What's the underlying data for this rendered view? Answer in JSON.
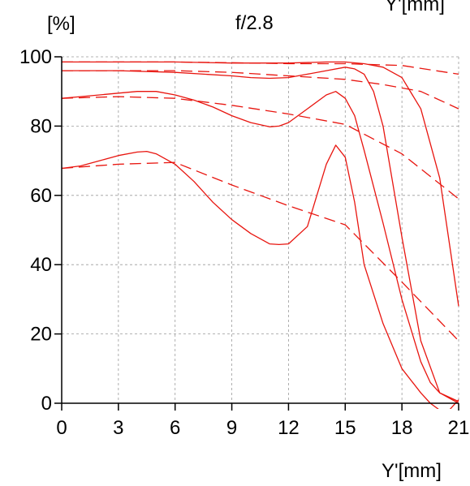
{
  "chart_data": {
    "type": "line",
    "title": "f/2.8",
    "ylabel": "[%]",
    "xlabel": "Y'[mm]",
    "corner_label": "Y'[mm]",
    "xlim": [
      0,
      21
    ],
    "ylim": [
      0,
      100
    ],
    "xticks": [
      0,
      3,
      6,
      9,
      12,
      15,
      18,
      21
    ],
    "yticks": [
      0,
      20,
      40,
      60,
      80,
      100
    ],
    "grid": true,
    "legend": "none",
    "colors": {
      "series": "#e8150f",
      "grid": "#9a9a9a",
      "axis": "#000000"
    },
    "series": [
      {
        "style": "solid",
        "x": [
          0,
          3,
          6,
          9,
          12,
          14,
          15,
          16,
          17,
          18,
          19,
          20,
          21
        ],
        "y": [
          98.5,
          98.5,
          98.5,
          98.2,
          98.2,
          98.5,
          98.5,
          98,
          97,
          94,
          85,
          65,
          28
        ]
      },
      {
        "style": "dashed",
        "x": [
          0,
          3,
          6,
          9,
          12,
          15,
          18,
          21
        ],
        "y": [
          98.5,
          98.5,
          98.5,
          98.3,
          98,
          98,
          97.5,
          95
        ]
      },
      {
        "style": "solid",
        "x": [
          0,
          3,
          6,
          9,
          10,
          11,
          12,
          13,
          14,
          15,
          15.5,
          16,
          16.5,
          17,
          18,
          19,
          20,
          21
        ],
        "y": [
          96,
          96,
          95.5,
          94.5,
          94,
          93.8,
          94,
          95,
          96,
          97,
          96.5,
          95,
          90,
          80,
          48,
          18,
          3,
          0.5
        ]
      },
      {
        "style": "dashed",
        "x": [
          0,
          3,
          6,
          9,
          12,
          15,
          17,
          19,
          21
        ],
        "y": [
          96,
          96,
          96,
          95.5,
          94.5,
          93.5,
          92,
          90,
          85
        ]
      },
      {
        "style": "solid",
        "x": [
          0,
          1,
          2,
          3,
          4,
          5,
          6,
          7,
          8,
          9,
          10,
          11,
          11.5,
          12,
          13,
          14,
          14.5,
          15,
          15.5,
          16,
          17,
          18,
          19,
          19.5,
          20,
          21
        ],
        "y": [
          88,
          88.5,
          89,
          89.5,
          90,
          90,
          89,
          87.5,
          85.5,
          83,
          81,
          79.8,
          80,
          81,
          85,
          89,
          90,
          88,
          83,
          73,
          52,
          30,
          12,
          6,
          3,
          0
        ]
      },
      {
        "style": "dashed",
        "x": [
          0,
          3,
          6,
          9,
          12,
          15,
          18,
          21
        ],
        "y": [
          88,
          88.5,
          88,
          86,
          83.5,
          80.5,
          72,
          59
        ]
      },
      {
        "style": "solid",
        "x": [
          0,
          1,
          2,
          3,
          4,
          4.5,
          5,
          6,
          7,
          8,
          9,
          10,
          11,
          11.5,
          12,
          13,
          14,
          14.5,
          15,
          15.5,
          16,
          17,
          18,
          19,
          19.5,
          20,
          20.5,
          21
        ],
        "y": [
          67.8,
          68.5,
          70,
          71.5,
          72.5,
          72.7,
          72,
          69,
          64,
          58,
          53,
          49,
          46,
          45.8,
          46,
          51,
          69,
          74.5,
          71,
          58,
          40,
          23,
          10,
          3,
          0,
          -2,
          -2,
          1
        ]
      },
      {
        "style": "dashed",
        "x": [
          0,
          3,
          6,
          9,
          12,
          15,
          18,
          21
        ],
        "y": [
          67.8,
          69,
          69.5,
          63,
          57,
          51.5,
          35,
          18
        ]
      }
    ]
  }
}
